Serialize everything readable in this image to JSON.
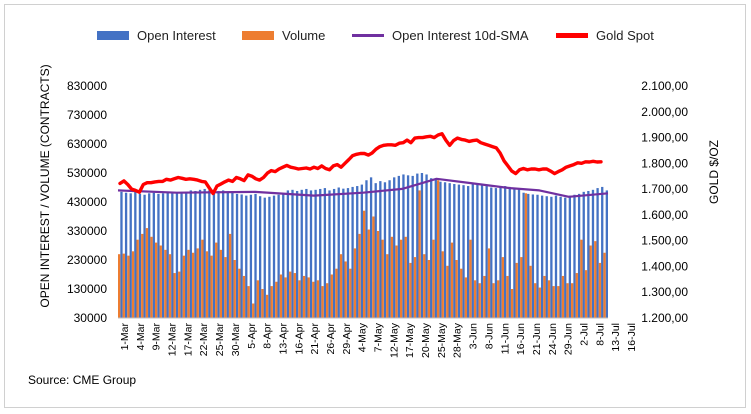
{
  "chart_data": {
    "type": "bar",
    "source": "Source: CME Group",
    "ylabel": "OPEN INTEREST / VOLUME (CONTRACTS)",
    "y2label": "GOLD $/OZ",
    "ylim": [
      30000,
      830000
    ],
    "y2lim": [
      1200,
      2100
    ],
    "y_ticks": [
      "30000",
      "130000",
      "230000",
      "330000",
      "430000",
      "530000",
      "630000",
      "730000",
      "830000"
    ],
    "y2_ticks": [
      "1.200,00",
      "1.300,00",
      "1.400,00",
      "1.500,00",
      "1.600,00",
      "1.700,00",
      "1.800,00",
      "1.900,00",
      "2.000,00",
      "2.100,00"
    ],
    "x_tick_labels": [
      "1-Mar",
      "4-Mar",
      "9-Mar",
      "12-Mar",
      "17-Mar",
      "22-Mar",
      "25-Mar",
      "30-Mar",
      "5-Apr",
      "8-Apr",
      "13-Apr",
      "16-Apr",
      "21-Apr",
      "26-Apr",
      "29-Apr",
      "4-May",
      "7-May",
      "12-May",
      "17-May",
      "20-May",
      "25-May",
      "28-May",
      "3-Jun",
      "8-Jun",
      "11-Jun",
      "16-Jun",
      "21-Jun",
      "24-Jun",
      "29-Jun",
      "2-Jul",
      "8-Jul",
      "13-Jul",
      "16-Jul"
    ],
    "legend": [
      {
        "name": "Open Interest",
        "color": "#4472c4",
        "kind": "bar"
      },
      {
        "name": "Volume",
        "color": "#ed7d31",
        "kind": "bar"
      },
      {
        "name": "Open Interest 10d-SMA",
        "color": "#7030a0",
        "kind": "line"
      },
      {
        "name": "Gold Spot",
        "color": "#ff0000",
        "kind": "line"
      }
    ],
    "series": [
      {
        "name": "Open Interest",
        "axis": "left",
        "values": [
          465000,
          462000,
          460000,
          468000,
          458000,
          455000,
          460000,
          462000,
          458000,
          460000,
          462000,
          465000,
          460000,
          462000,
          465000,
          470000,
          468000,
          472000,
          475000,
          470000,
          472000,
          468000,
          470000,
          462000,
          465000,
          458000,
          456000,
          452000,
          455000,
          458000,
          450000,
          445000,
          448000,
          452000,
          455000,
          460000,
          470000,
          472000,
          468000,
          472000,
          475000,
          470000,
          472000,
          475000,
          478000,
          470000,
          475000,
          480000,
          476000,
          478000,
          482000,
          485000,
          490000,
          505000,
          515000,
          495000,
          502000,
          498000,
          505000,
          515000,
          520000,
          525000,
          522000,
          520000,
          528000,
          530000,
          525000,
          512000,
          508000,
          500000,
          498000,
          495000,
          492000,
          490000,
          488000,
          485000,
          492000,
          495000,
          490000,
          485000,
          480000,
          478000,
          482000,
          485000,
          482000,
          480000,
          478000,
          462000,
          458000,
          456000,
          455000,
          452000,
          450000,
          448000,
          452000,
          448000,
          445000,
          452000,
          455000,
          458000,
          465000,
          468000,
          472000,
          478000,
          482000,
          470000
        ]
      },
      {
        "name": "Volume",
        "axis": "left",
        "values": [
          250000,
          252000,
          245000,
          260000,
          300000,
          320000,
          340000,
          310000,
          290000,
          280000,
          265000,
          250000,
          185000,
          190000,
          245000,
          265000,
          255000,
          270000,
          300000,
          260000,
          245000,
          290000,
          265000,
          240000,
          320000,
          230000,
          200000,
          175000,
          140000,
          80000,
          160000,
          130000,
          110000,
          140000,
          155000,
          180000,
          170000,
          190000,
          185000,
          160000,
          175000,
          170000,
          155000,
          160000,
          140000,
          150000,
          180000,
          200000,
          250000,
          225000,
          200000,
          270000,
          320000,
          400000,
          335000,
          380000,
          330000,
          300000,
          250000,
          310000,
          280000,
          300000,
          310000,
          220000,
          240000,
          470000,
          250000,
          230000,
          300000,
          505000,
          260000,
          210000,
          290000,
          230000,
          200000,
          170000,
          300000,
          160000,
          150000,
          175000,
          270000,
          150000,
          160000,
          240000,
          175000,
          130000,
          220000,
          240000,
          460000,
          210000,
          150000,
          135000,
          175000,
          160000,
          140000,
          140000,
          175000,
          150000,
          150000,
          185000,
          300000,
          195000,
          280000,
          295000,
          220000,
          255000
        ]
      },
      {
        "name": "Open Interest 10d-SMA",
        "axis": "left",
        "x_frac": [
          0,
          0.12,
          0.28,
          0.4,
          0.5,
          0.58,
          0.65,
          0.72,
          0.8,
          0.86,
          0.92,
          1.0
        ],
        "values": [
          470000,
          462000,
          465000,
          452000,
          462000,
          475000,
          510000,
          495000,
          478000,
          470000,
          448000,
          460000
        ]
      },
      {
        "name": "Gold Spot",
        "axis": "right",
        "values": [
          1722,
          1732,
          1718,
          1700,
          1695,
          1688,
          1718,
          1725,
          1725,
          1728,
          1730,
          1730,
          1738,
          1735,
          1740,
          1745,
          1742,
          1738,
          1740,
          1738,
          1735,
          1730,
          1728,
          1705,
          1683,
          1712,
          1720,
          1728,
          1735,
          1730,
          1745,
          1740,
          1733,
          1755,
          1750,
          1740,
          1735,
          1745,
          1762,
          1772,
          1768,
          1778,
          1785,
          1792,
          1785,
          1782,
          1778,
          1780,
          1782,
          1778,
          1785,
          1780,
          1790,
          1780,
          1775,
          1790,
          1795,
          1785,
          1800,
          1815,
          1830,
          1835,
          1838,
          1838,
          1832,
          1840,
          1855,
          1865,
          1870,
          1872,
          1872,
          1870,
          1878,
          1880,
          1890,
          1880,
          1898,
          1900,
          1900,
          1903,
          1905,
          1900,
          1910,
          1915,
          1890,
          1870,
          1888,
          1898,
          1893,
          1890,
          1885,
          1888,
          1890,
          1880,
          1875,
          1870,
          1865,
          1860,
          1840,
          1810,
          1790,
          1770,
          1760,
          1775,
          1780,
          1775,
          1778,
          1778,
          1775,
          1778,
          1778,
          1770,
          1760,
          1768,
          1775,
          1785,
          1790,
          1795,
          1802,
          1800,
          1806,
          1805,
          1808,
          1805,
          1806
        ]
      }
    ]
  }
}
